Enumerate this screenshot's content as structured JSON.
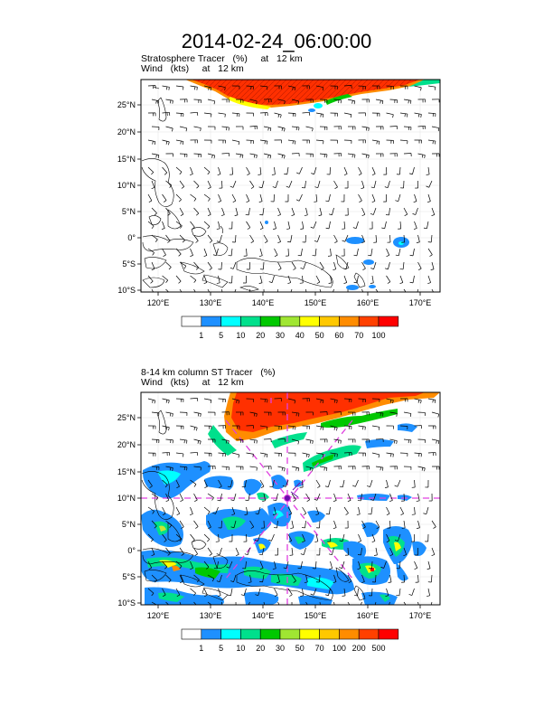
{
  "title": "2014-02-24_06:00:00",
  "panel1": {
    "title_line1": "Stratosphere Tracer   (%)     at   12 km",
    "title_line2": "Wind   (kts)     at   12 km",
    "lat_labels": [
      "25°N",
      "20°N",
      "15°N",
      "10°N",
      "5°N",
      "0°",
      "5°S",
      "10°S"
    ],
    "lon_labels": [
      "120°E",
      "130°E",
      "140°E",
      "150°E",
      "160°E",
      "170°E"
    ],
    "legend_labels": [
      "1",
      "5",
      "10",
      "20",
      "30",
      "40",
      "50",
      "60",
      "70",
      "100"
    ],
    "legend_colors": [
      "#ffffff",
      "#1e90ff",
      "#00ffff",
      "#00e08c",
      "#00c800",
      "#a0e632",
      "#ffff00",
      "#ffc800",
      "#ff8c00",
      "#ff4000",
      "#ff0000"
    ]
  },
  "panel2": {
    "title_line1": "8-14 km column ST Tracer   (%)",
    "title_line2": "Wind   (kts)     at   12 km",
    "lat_labels": [
      "25°N",
      "20°N",
      "15°N",
      "10°N",
      "5°N",
      "0°",
      "5°S",
      "10°S"
    ],
    "lon_labels": [
      "120°E",
      "130°E",
      "140°E",
      "150°E",
      "160°E",
      "170°E"
    ],
    "legend_labels": [
      "1",
      "5",
      "10",
      "20",
      "30",
      "50",
      "70",
      "100",
      "200",
      "500"
    ],
    "legend_colors": [
      "#ffffff",
      "#1e90ff",
      "#00ffff",
      "#00e08c",
      "#00c800",
      "#a0e632",
      "#ffff00",
      "#ffc800",
      "#ff8c00",
      "#ff4000",
      "#ff0000"
    ]
  }
}
